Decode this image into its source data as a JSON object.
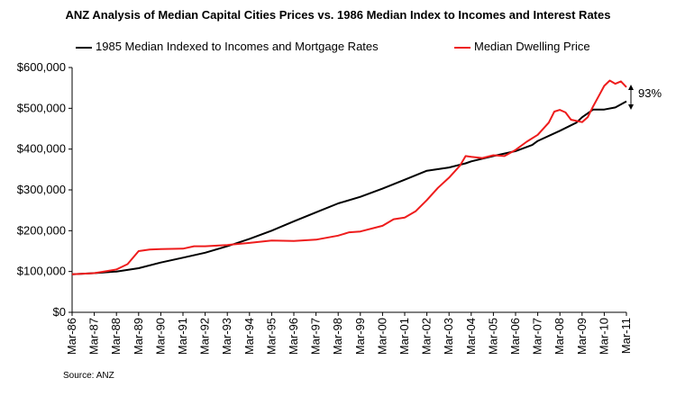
{
  "chart_data": {
    "type": "line",
    "title": "ANZ Analysis of Median Capital Cities Prices vs. 1986 Median Index to Incomes and Interest Rates",
    "xlabel": "",
    "ylabel": "",
    "ylim": [
      0,
      600000
    ],
    "grid": false,
    "legend_position": "top",
    "y_ticks": [
      "$0",
      "$100,000",
      "$200,000",
      "$300,000",
      "$400,000",
      "$500,000",
      "$600,000"
    ],
    "categories": [
      "Mar-86",
      "Mar-87",
      "Mar-88",
      "Mar-89",
      "Mar-90",
      "Mar-91",
      "Mar-92",
      "Mar-93",
      "Mar-94",
      "Mar-95",
      "Mar-96",
      "Mar-97",
      "Mar-98",
      "Mar-99",
      "Mar-00",
      "Mar-01",
      "Mar-02",
      "Mar-03",
      "Mar-04",
      "Mar-05",
      "Mar-06",
      "Mar-07",
      "Mar-08",
      "Mar-09",
      "Mar-10",
      "Mar-11"
    ],
    "series": [
      {
        "name": "1985 Median Indexed to Incomes and Mortgage Rates",
        "color": "#000000",
        "points": [
          [
            1986,
            93000
          ],
          [
            1987,
            96000
          ],
          [
            1988,
            100000
          ],
          [
            1989,
            108000
          ],
          [
            1990,
            122000
          ],
          [
            1991,
            134000
          ],
          [
            1992,
            146000
          ],
          [
            1993,
            162000
          ],
          [
            1994,
            180000
          ],
          [
            1995,
            200000
          ],
          [
            1996,
            223000
          ],
          [
            1997,
            245000
          ],
          [
            1998,
            267000
          ],
          [
            1999,
            283000
          ],
          [
            2000,
            303000
          ],
          [
            2001,
            325000
          ],
          [
            2002,
            347000
          ],
          [
            2003,
            355000
          ],
          [
            2003.75,
            365000
          ],
          [
            2004,
            370000
          ],
          [
            2005,
            383000
          ],
          [
            2006,
            395000
          ],
          [
            2006.75,
            410000
          ],
          [
            2007,
            420000
          ],
          [
            2008,
            445000
          ],
          [
            2008.75,
            465000
          ],
          [
            2009,
            478000
          ],
          [
            2009.5,
            497000
          ],
          [
            2010,
            497000
          ],
          [
            2010.5,
            502000
          ],
          [
            2011,
            517000
          ]
        ]
      },
      {
        "name": "Median Dwelling Price",
        "color": "#ee1c1c",
        "points": [
          [
            1986,
            93000
          ],
          [
            1987,
            96000
          ],
          [
            1988,
            105000
          ],
          [
            1988.5,
            118000
          ],
          [
            1989,
            150000
          ],
          [
            1989.5,
            154000
          ],
          [
            1990,
            155000
          ],
          [
            1991,
            156000
          ],
          [
            1991.5,
            162000
          ],
          [
            1992,
            162000
          ],
          [
            1993,
            165000
          ],
          [
            1994,
            170000
          ],
          [
            1995,
            176000
          ],
          [
            1996,
            175000
          ],
          [
            1997,
            178000
          ],
          [
            1998,
            188000
          ],
          [
            1998.5,
            196000
          ],
          [
            1999,
            198000
          ],
          [
            2000,
            212000
          ],
          [
            2000.5,
            228000
          ],
          [
            2001,
            232000
          ],
          [
            2001.5,
            248000
          ],
          [
            2002,
            275000
          ],
          [
            2002.5,
            305000
          ],
          [
            2003,
            330000
          ],
          [
            2003.5,
            360000
          ],
          [
            2003.75,
            383000
          ],
          [
            2004,
            381000
          ],
          [
            2004.5,
            378000
          ],
          [
            2005,
            385000
          ],
          [
            2005.5,
            383000
          ],
          [
            2006,
            398000
          ],
          [
            2006.5,
            418000
          ],
          [
            2007,
            435000
          ],
          [
            2007.5,
            465000
          ],
          [
            2007.75,
            492000
          ],
          [
            2008,
            496000
          ],
          [
            2008.25,
            490000
          ],
          [
            2008.5,
            472000
          ],
          [
            2009,
            466000
          ],
          [
            2009.25,
            478000
          ],
          [
            2009.5,
            505000
          ],
          [
            2009.75,
            530000
          ],
          [
            2010,
            555000
          ],
          [
            2010.25,
            568000
          ],
          [
            2010.5,
            560000
          ],
          [
            2010.75,
            566000
          ],
          [
            2011,
            552000
          ]
        ]
      }
    ],
    "annotation": {
      "text": "93%"
    }
  },
  "source": "Source: ANZ"
}
